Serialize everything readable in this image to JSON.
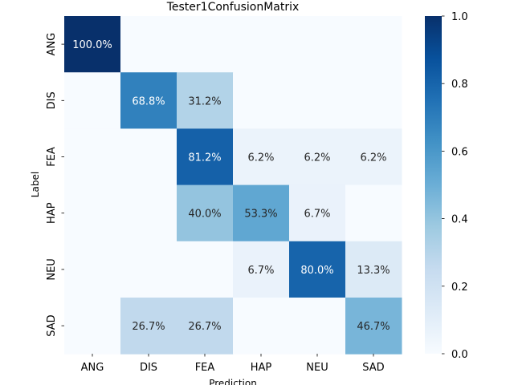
{
  "chart_data": {
    "type": "heatmap",
    "title": "Tester1ConfusionMatrix",
    "xlabel": "Prediction",
    "ylabel": "Label",
    "x_categories": [
      "ANG",
      "DIS",
      "FEA",
      "HAP",
      "NEU",
      "SAD"
    ],
    "y_categories": [
      "ANG",
      "DIS",
      "FEA",
      "HAP",
      "NEU",
      "SAD"
    ],
    "values": [
      [
        1.0,
        0,
        0,
        0,
        0,
        0
      ],
      [
        0,
        0.688,
        0.312,
        0,
        0,
        0
      ],
      [
        0,
        0,
        0.812,
        0.062,
        0.062,
        0.062
      ],
      [
        0,
        0,
        0.4,
        0.533,
        0.067,
        0
      ],
      [
        0,
        0,
        0,
        0.067,
        0.8,
        0.133
      ],
      [
        0,
        0.267,
        0.267,
        0,
        0,
        0.467
      ]
    ],
    "annotations": [
      [
        "100.0%",
        "",
        "",
        "",
        "",
        ""
      ],
      [
        "",
        "68.8%",
        "31.2%",
        "",
        "",
        ""
      ],
      [
        "",
        "",
        "81.2%",
        "6.2%",
        "6.2%",
        "6.2%"
      ],
      [
        "",
        "",
        "40.0%",
        "53.3%",
        "6.7%",
        ""
      ],
      [
        "",
        "",
        "",
        "6.7%",
        "80.0%",
        "13.3%"
      ],
      [
        "",
        "26.7%",
        "26.7%",
        "",
        "",
        "46.7%"
      ]
    ],
    "colormap": "Blues",
    "colorbar": {
      "range": [
        0.0,
        1.0
      ],
      "ticks": [
        "0.0",
        "0.2",
        "0.4",
        "0.6",
        "0.8",
        "1.0"
      ]
    }
  }
}
